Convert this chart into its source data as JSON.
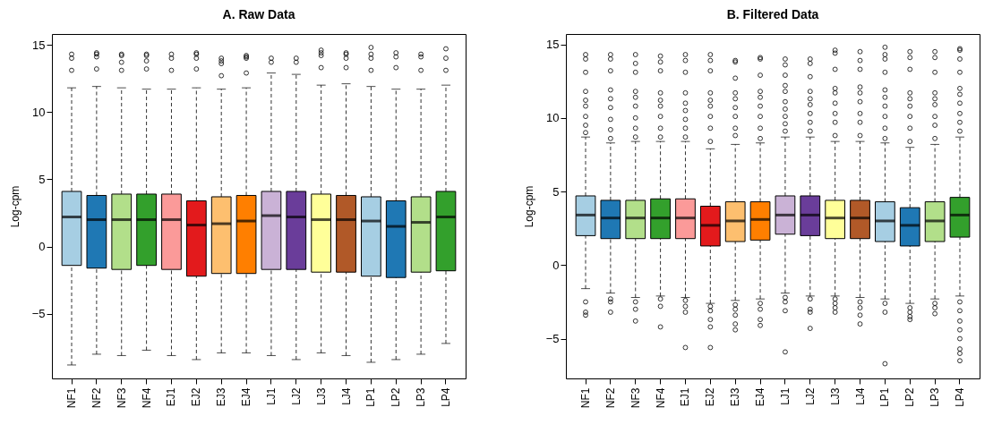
{
  "chart_data": [
    {
      "type": "box",
      "title": "A. Raw Data",
      "ylabel": "Log-cpm",
      "categories": [
        "NF1",
        "NF2",
        "NF3",
        "NF4",
        "EJ1",
        "EJ2",
        "EJ3",
        "EJ4",
        "LJ1",
        "LJ2",
        "LJ3",
        "LJ4",
        "LP1",
        "LP2",
        "LP3",
        "LP4"
      ],
      "colors": [
        "#a6cee3",
        "#1f78b4",
        "#b2df8a",
        "#33a02c",
        "#fb9a99",
        "#e31a1c",
        "#fdbf6f",
        "#ff7f00",
        "#cab2d6",
        "#6a3d9a",
        "#ffff99",
        "#b15928",
        "#a6cee3",
        "#1f78b4",
        "#b2df8a",
        "#33a02c"
      ],
      "ylim": [
        -9.8,
        15.8
      ],
      "yticks": [
        -5,
        0,
        5,
        10,
        15
      ],
      "boxes": [
        {
          "low": -8.8,
          "q1": -1.4,
          "median": 2.2,
          "q3": 4.1,
          "high": 11.8,
          "outliers": [
            13.1,
            14.0,
            14.3
          ]
        },
        {
          "low": -8.0,
          "q1": -1.6,
          "median": 2.0,
          "q3": 3.8,
          "high": 11.9,
          "outliers": [
            13.2,
            14.1,
            14.3,
            14.4
          ]
        },
        {
          "low": -8.1,
          "q1": -1.7,
          "median": 2.0,
          "q3": 3.9,
          "high": 11.8,
          "outliers": [
            13.1,
            13.7,
            14.2,
            14.3
          ]
        },
        {
          "low": -7.7,
          "q1": -1.4,
          "median": 2.0,
          "q3": 3.9,
          "high": 11.7,
          "outliers": [
            13.2,
            13.8,
            14.2,
            14.3
          ]
        },
        {
          "low": -8.1,
          "q1": -1.7,
          "median": 2.0,
          "q3": 3.9,
          "high": 11.7,
          "outliers": [
            13.1,
            14.0,
            14.3
          ]
        },
        {
          "low": -8.4,
          "q1": -2.2,
          "median": 1.6,
          "q3": 3.4,
          "high": 11.8,
          "outliers": [
            13.2,
            14.0,
            14.3,
            14.4
          ]
        },
        {
          "low": -7.9,
          "q1": -2.0,
          "median": 1.7,
          "q3": 3.7,
          "high": 11.7,
          "outliers": [
            12.7,
            13.6,
            13.8,
            14.0
          ]
        },
        {
          "low": -7.9,
          "q1": -2.0,
          "median": 1.9,
          "q3": 3.8,
          "high": 11.8,
          "outliers": [
            12.9,
            14.0,
            14.1,
            14.2
          ]
        },
        {
          "low": -8.1,
          "q1": -1.7,
          "median": 2.3,
          "q3": 4.1,
          "high": 12.9,
          "outliers": [
            13.7,
            14.0
          ]
        },
        {
          "low": -8.4,
          "q1": -1.7,
          "median": 2.2,
          "q3": 4.1,
          "high": 12.8,
          "outliers": [
            13.7,
            14.0
          ]
        },
        {
          "low": -7.9,
          "q1": -1.9,
          "median": 2.0,
          "q3": 3.9,
          "high": 12.0,
          "outliers": [
            13.3,
            14.2,
            14.4,
            14.6
          ]
        },
        {
          "low": -8.1,
          "q1": -1.9,
          "median": 2.0,
          "q3": 3.8,
          "high": 12.1,
          "outliers": [
            13.3,
            14.0,
            14.3,
            14.4
          ]
        },
        {
          "low": -8.6,
          "q1": -2.2,
          "median": 1.9,
          "q3": 3.7,
          "high": 11.9,
          "outliers": [
            13.1,
            14.0,
            14.3,
            14.8
          ]
        },
        {
          "low": -8.4,
          "q1": -2.3,
          "median": 1.5,
          "q3": 3.4,
          "high": 11.7,
          "outliers": [
            13.3,
            14.1,
            14.4
          ]
        },
        {
          "low": -8.0,
          "q1": -1.9,
          "median": 1.8,
          "q3": 3.7,
          "high": 11.7,
          "outliers": [
            13.1,
            14.1,
            14.3
          ]
        },
        {
          "low": -7.2,
          "q1": -1.8,
          "median": 2.2,
          "q3": 4.1,
          "high": 12.0,
          "outliers": [
            13.1,
            14.0,
            14.7
          ]
        }
      ]
    },
    {
      "type": "box",
      "title": "B. Filtered Data",
      "ylabel": "Log-cpm",
      "categories": [
        "NF1",
        "NF2",
        "NF3",
        "NF4",
        "EJ1",
        "EJ2",
        "EJ3",
        "EJ4",
        "LJ1",
        "LJ2",
        "LJ3",
        "LJ4",
        "LP1",
        "LP2",
        "LP3",
        "LP4"
      ],
      "colors": [
        "#a6cee3",
        "#1f78b4",
        "#b2df8a",
        "#33a02c",
        "#fb9a99",
        "#e31a1c",
        "#fdbf6f",
        "#ff7f00",
        "#cab2d6",
        "#6a3d9a",
        "#ffff99",
        "#b15928",
        "#a6cee3",
        "#1f78b4",
        "#b2df8a",
        "#33a02c"
      ],
      "ylim": [
        -7.7,
        15.7
      ],
      "yticks": [
        -5,
        0,
        5,
        10,
        15
      ],
      "boxes": [
        {
          "low": -1.6,
          "q1": 2.0,
          "median": 3.4,
          "q3": 4.7,
          "high": 8.7,
          "outliers": [
            9.0,
            9.5,
            10.1,
            10.8,
            11.2,
            11.8,
            13.1,
            14.0,
            14.3,
            -2.5,
            -3.2,
            -3.4
          ]
        },
        {
          "low": -1.9,
          "q1": 1.8,
          "median": 3.2,
          "q3": 4.4,
          "high": 8.3,
          "outliers": [
            8.6,
            9.2,
            9.9,
            10.7,
            11.3,
            11.9,
            13.2,
            14.0,
            14.3,
            -2.3,
            -2.5,
            -3.2
          ]
        },
        {
          "low": -2.2,
          "q1": 1.8,
          "median": 3.2,
          "q3": 4.4,
          "high": 8.4,
          "outliers": [
            8.7,
            9.3,
            10.0,
            10.8,
            11.4,
            11.8,
            13.1,
            13.7,
            14.3,
            -2.5,
            -3.0,
            -3.8
          ]
        },
        {
          "low": -2.1,
          "q1": 1.8,
          "median": 3.2,
          "q3": 4.5,
          "high": 8.4,
          "outliers": [
            8.7,
            9.3,
            10.1,
            10.8,
            11.2,
            11.7,
            13.2,
            13.8,
            14.2,
            -2.3,
            -2.8,
            -4.2
          ]
        },
        {
          "low": -2.2,
          "q1": 1.8,
          "median": 3.2,
          "q3": 4.5,
          "high": 8.4,
          "outliers": [
            8.7,
            9.3,
            9.9,
            10.5,
            11.0,
            11.7,
            13.1,
            13.9,
            14.3,
            -2.4,
            -2.8,
            -3.2,
            -5.6
          ]
        },
        {
          "low": -2.6,
          "q1": 1.3,
          "median": 2.7,
          "q3": 4.0,
          "high": 7.9,
          "outliers": [
            8.4,
            9.3,
            10.1,
            10.8,
            11.2,
            11.7,
            13.2,
            13.9,
            14.3,
            -2.8,
            -3.1,
            -3.7,
            -4.2,
            -5.6
          ]
        },
        {
          "low": -2.4,
          "q1": 1.6,
          "median": 3.0,
          "q3": 4.3,
          "high": 8.2,
          "outliers": [
            8.8,
            9.3,
            10.1,
            10.7,
            11.3,
            11.7,
            12.7,
            13.8,
            13.9,
            -2.7,
            -3.0,
            -3.4,
            -4.0,
            -4.4
          ]
        },
        {
          "low": -2.3,
          "q1": 1.7,
          "median": 3.1,
          "q3": 4.3,
          "high": 8.3,
          "outliers": [
            8.6,
            9.3,
            10.1,
            10.8,
            11.4,
            11.8,
            12.9,
            14.0,
            14.1,
            -2.6,
            -3.0,
            -3.7,
            -4.1
          ]
        },
        {
          "low": -1.9,
          "q1": 2.1,
          "median": 3.4,
          "q3": 4.7,
          "high": 8.7,
          "outliers": [
            9.1,
            9.6,
            10.1,
            10.6,
            11.1,
            11.8,
            12.2,
            12.9,
            13.6,
            14.0,
            -2.2,
            -2.5,
            -3.1,
            -5.9
          ]
        },
        {
          "low": -2.1,
          "q1": 2.0,
          "median": 3.4,
          "q3": 4.7,
          "high": 8.7,
          "outliers": [
            9.1,
            9.7,
            10.3,
            10.9,
            11.3,
            11.8,
            12.8,
            13.7,
            14.0,
            -2.3,
            -3.0,
            -3.2,
            -4.3
          ]
        },
        {
          "low": -2.1,
          "q1": 1.8,
          "median": 3.2,
          "q3": 4.4,
          "high": 8.4,
          "outliers": [
            8.8,
            9.7,
            10.3,
            11.0,
            11.7,
            12.0,
            13.3,
            14.4,
            14.6,
            -2.3,
            -2.6,
            -2.9,
            -3.2
          ]
        },
        {
          "low": -2.2,
          "q1": 1.8,
          "median": 3.2,
          "q3": 4.4,
          "high": 8.4,
          "outliers": [
            8.8,
            9.7,
            10.3,
            11.1,
            11.7,
            12.1,
            13.3,
            13.9,
            14.5,
            -2.5,
            -2.9,
            -3.4,
            -4.0
          ]
        },
        {
          "low": -2.3,
          "q1": 1.6,
          "median": 3.0,
          "q3": 4.3,
          "high": 8.3,
          "outliers": [
            8.6,
            9.3,
            10.1,
            10.8,
            11.4,
            11.9,
            13.1,
            14.0,
            14.3,
            14.8,
            -2.6,
            -3.2,
            -6.7
          ]
        },
        {
          "low": -2.6,
          "q1": 1.3,
          "median": 2.7,
          "q3": 3.9,
          "high": 8.0,
          "outliers": [
            8.4,
            9.3,
            10.1,
            10.8,
            11.3,
            11.7,
            13.3,
            14.1,
            14.5,
            -2.9,
            -3.2,
            -3.5,
            -3.7
          ]
        },
        {
          "low": -2.3,
          "q1": 1.6,
          "median": 3.0,
          "q3": 4.3,
          "high": 8.2,
          "outliers": [
            8.6,
            9.5,
            10.1,
            10.9,
            11.3,
            11.7,
            13.1,
            14.1,
            14.5,
            -2.6,
            -2.9,
            -3.3
          ]
        },
        {
          "low": -2.1,
          "q1": 1.9,
          "median": 3.4,
          "q3": 4.6,
          "high": 8.7,
          "outliers": [
            9.1,
            9.7,
            10.3,
            11.0,
            11.6,
            12.0,
            13.1,
            14.0,
            14.6,
            14.7,
            -2.5,
            -3.1,
            -3.8,
            -4.4,
            -5.0,
            -5.7,
            -6.0,
            -6.5
          ]
        }
      ]
    }
  ]
}
